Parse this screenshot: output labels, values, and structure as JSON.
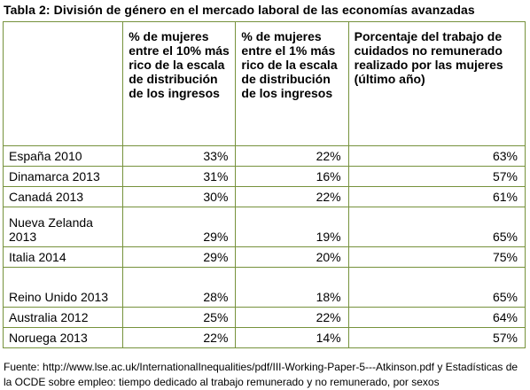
{
  "title": "Tabla 2: División de género en el mercado laboral de las economías avanzadas",
  "table": {
    "headers": [
      "",
      "% de mujeres entre el 10% más rico de la escala de distribución de los ingresos",
      "% de mujeres entre el 1% más rico de la escala de distribución de los ingresos",
      "Porcentaje del trabajo de cuidados no remunerado realizado por las mujeres (último año)"
    ],
    "rows": [
      {
        "country": "España 2010",
        "top10": "33%",
        "top1": "22%",
        "care": "63%"
      },
      {
        "country": "Dinamarca 2013",
        "top10": "31%",
        "top1": "16%",
        "care": "57%"
      },
      {
        "country": "Canadá 2013",
        "top10": "30%",
        "top1": "22%",
        "care": "61%"
      },
      {
        "country": "Nueva Zelanda 2013",
        "top10": "29%",
        "top1": "19%",
        "care": "65%"
      },
      {
        "country": "Italia 2014",
        "top10": "29%",
        "top1": "20%",
        "care": "75%"
      },
      {
        "country": "Reino Unido 2013",
        "top10": "28%",
        "top1": "18%",
        "care": "65%"
      },
      {
        "country": "Australia 2012",
        "top10": "25%",
        "top1": "22%",
        "care": "64%"
      },
      {
        "country": "Noruega 2013",
        "top10": "22%",
        "top1": "14%",
        "care": "57%"
      }
    ]
  },
  "source": "Fuente: http://www.lse.ac.uk/InternationalInequalities/pdf/III-Working-Paper-5---Atkinson.pdf y Estadísticas de la OCDE sobre empleo: tiempo dedicado al trabajo remunerado y no remunerado, por sexos",
  "colors": {
    "border": "#76923c",
    "text": "#000000"
  }
}
